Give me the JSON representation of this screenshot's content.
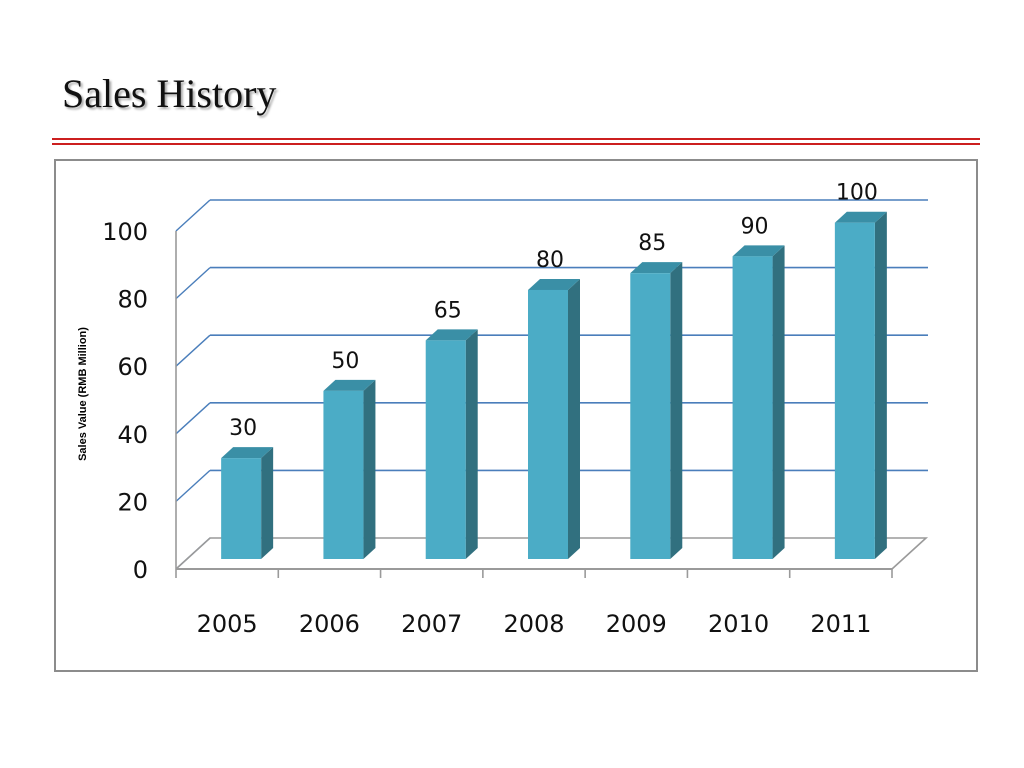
{
  "slide": {
    "title": "Sales History"
  },
  "colors": {
    "rule": "#cc1f1f",
    "bar_front": "#4bacc6",
    "bar_side": "#31707f",
    "bar_top": "#3a8fa6",
    "gridline": "#4a7ebb",
    "frame": "#8c8c8c",
    "axis": "#9a9a9a"
  },
  "chart_data": {
    "type": "bar",
    "style": "3d-column",
    "categories": [
      "2005",
      "2006",
      "2007",
      "2008",
      "2009",
      "2010",
      "2011"
    ],
    "values": [
      30,
      50,
      65,
      80,
      85,
      90,
      100
    ],
    "data_labels": [
      "30",
      "50",
      "65",
      "80",
      "85",
      "90",
      "100"
    ],
    "title": "",
    "xlabel": "",
    "ylabel": "Sales Value (RMB Million)",
    "ylim": [
      0,
      100
    ],
    "yticks": [
      0,
      20,
      40,
      60,
      80,
      100
    ],
    "ytick_labels": [
      "0",
      "20",
      "40",
      "60",
      "80",
      "100"
    ],
    "grid": true,
    "legend": false
  }
}
